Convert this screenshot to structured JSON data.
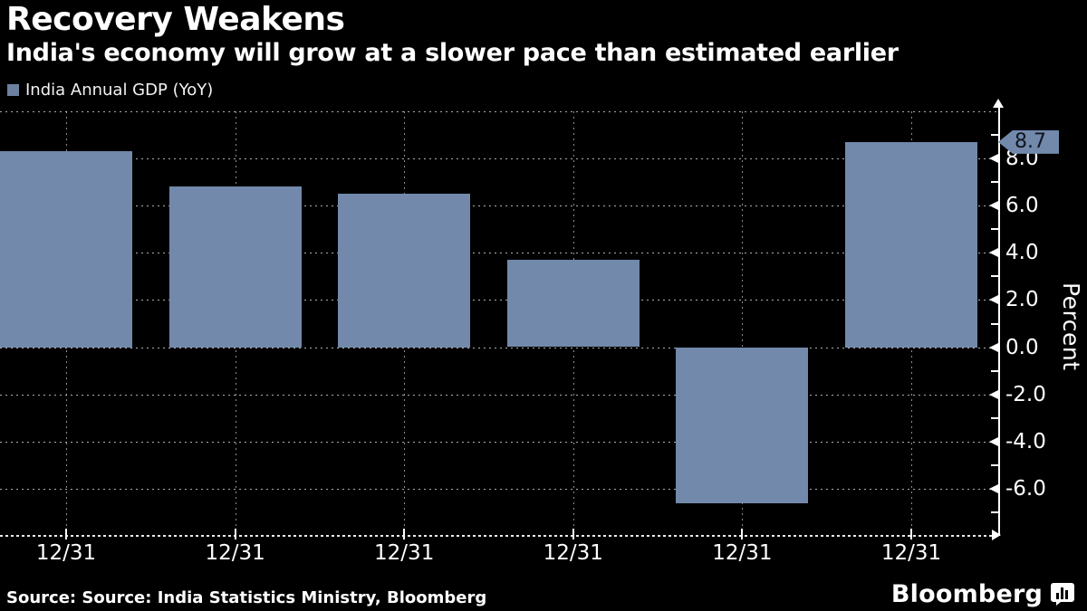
{
  "header": {
    "title": "Recovery Weakens",
    "subtitle": "India's economy will grow at a slower pace than estimated earlier"
  },
  "legend": {
    "label": "India Annual GDP (YoY)"
  },
  "chart_data": {
    "type": "bar",
    "title": "Recovery Weakens",
    "subtitle": "India's economy will grow at a slower pace than estimated earlier",
    "series_name": "India Annual GDP (YoY)",
    "categories": [
      "12/31",
      "12/31",
      "12/31",
      "12/31",
      "12/31",
      "12/31"
    ],
    "values": [
      8.3,
      6.8,
      6.5,
      3.7,
      -6.6,
      8.7
    ],
    "ylabel": "Percent",
    "ylim": [
      -8,
      10
    ],
    "ytick_labeled_values": [
      8,
      6,
      4,
      2,
      0,
      -2,
      -4,
      -6
    ],
    "ytick_labels": [
      "8.0",
      "6.0",
      "4.0",
      "2.0",
      "0.0",
      "-2.0",
      "-4.0",
      "-6.0"
    ],
    "ytick_minor_values": [
      9,
      7,
      5,
      3,
      1,
      -1,
      -3,
      -5,
      -7
    ],
    "gridline_values": [
      10,
      8,
      6,
      4,
      2,
      0,
      -2,
      -4,
      -6
    ],
    "grid": "dotted",
    "legend_position": "top-left",
    "last_value_callout": "8.7"
  },
  "colors": {
    "background": "#000000",
    "bar": "#7289ab",
    "legend_swatch": "#6c80a0",
    "callout_background": "#7289ab",
    "callout_text": "#11161f",
    "text": "#ffffff"
  },
  "footer": {
    "source": "Source: Source: India Statistics Ministry, Bloomberg",
    "brand": "Bloomberg"
  }
}
